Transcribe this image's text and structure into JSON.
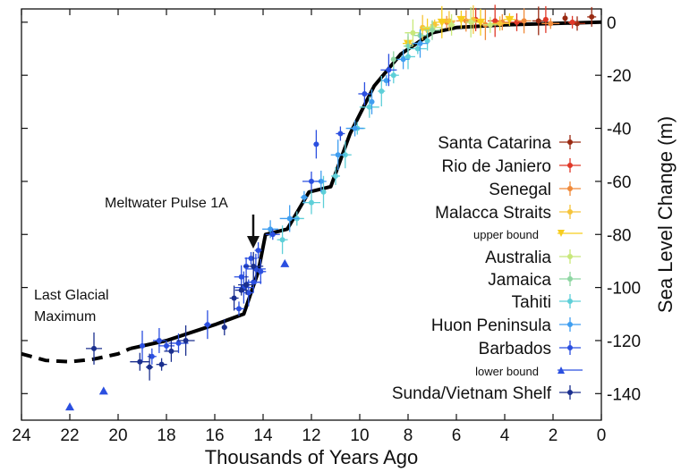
{
  "chart_data": {
    "type": "scatter",
    "xlabel": "Thousands of Years Ago",
    "ylabel": "Sea Level Change (m)",
    "xlim": [
      24,
      0
    ],
    "ylim": [
      -150,
      5
    ],
    "x_ticks": [
      24,
      22,
      20,
      18,
      16,
      14,
      12,
      10,
      8,
      6,
      4,
      2,
      0
    ],
    "y_ticks": [
      0,
      -20,
      -40,
      -60,
      -80,
      -100,
      -120,
      -140
    ],
    "y_axis_side": "right",
    "grid": false,
    "legend_position": "right, inside plot",
    "annotations": [
      {
        "id": "mwp",
        "text": "Meltwater Pulse 1A",
        "x": 14.5,
        "y": -78
      },
      {
        "id": "lgm",
        "text": "Last Glacial\nMaximum",
        "x": 22,
        "y": -128
      }
    ],
    "curve_dashed": {
      "name": "",
      "color": "#000000",
      "x": [
        24,
        23,
        22,
        21,
        20,
        19.5
      ],
      "y": [
        -125,
        -127.5,
        -128,
        -127,
        -125,
        -123
      ]
    },
    "curve_solid": {
      "name": "",
      "color": "#000000",
      "x": [
        19.5,
        18,
        16,
        14.8,
        14.2,
        13.9,
        13.0,
        12.1,
        11.2,
        10.4,
        9.4,
        8.3,
        7.0,
        6.0,
        4.0,
        2.0,
        0
      ],
      "y": [
        -123,
        -120,
        -114,
        -110,
        -94,
        -80,
        -78,
        -64,
        -62,
        -42,
        -24,
        -12,
        -4,
        -2,
        -1,
        -0.5,
        0
      ]
    },
    "series": [
      {
        "name": "Santa Catarina",
        "color": "#9a2a12",
        "marker": "circle",
        "points": [
          [
            1.5,
            1.5
          ],
          [
            0.4,
            2
          ],
          [
            2.6,
            0.5
          ],
          [
            1.0,
            -0.5
          ]
        ]
      },
      {
        "name": "Rio de Janiero",
        "color": "#e03828",
        "marker": "circle",
        "points": [
          [
            5.2,
            1
          ],
          [
            4.4,
            0.5
          ],
          [
            3.5,
            0
          ],
          [
            2.3,
            1
          ],
          [
            1.2,
            0
          ]
        ]
      },
      {
        "name": "Senegal",
        "color": "#f08a3a",
        "marker": "circle",
        "points": [
          [
            6.4,
            0
          ],
          [
            5.6,
            0.5
          ],
          [
            4.8,
            -1
          ],
          [
            4.1,
            0
          ],
          [
            3.2,
            0.5
          ],
          [
            2.1,
            -0.5
          ]
        ]
      },
      {
        "name": "Malacca Straits",
        "color": "#f6c43a",
        "marker": "circle",
        "points": [
          [
            7.4,
            -2
          ],
          [
            6.9,
            -1
          ],
          [
            6.3,
            0.5
          ],
          [
            5.3,
            1
          ],
          [
            4.2,
            -0.5
          ]
        ]
      },
      {
        "name": "upper bound",
        "color": "#f7cd1e",
        "marker": "triangle-down",
        "points": [
          [
            8.0,
            -8
          ],
          [
            7.2,
            -3
          ],
          [
            6.6,
            0
          ],
          [
            5.8,
            1
          ],
          [
            5.0,
            0
          ],
          [
            3.8,
            1
          ]
        ]
      },
      {
        "name": "Australia",
        "color": "#c8e87a",
        "marker": "circle",
        "points": [
          [
            7.8,
            -4
          ],
          [
            7.0,
            -2
          ],
          [
            6.2,
            -1
          ],
          [
            5.4,
            0
          ],
          [
            4.6,
            -1
          ]
        ]
      },
      {
        "name": "Jamaica",
        "color": "#8ed6a2",
        "marker": "circle",
        "points": [
          [
            8.6,
            -14
          ],
          [
            8.0,
            -9
          ],
          [
            7.5,
            -5
          ],
          [
            7.0,
            -3
          ]
        ]
      },
      {
        "name": "Tahiti",
        "color": "#5ecfd8",
        "marker": "circle",
        "points": [
          [
            13.2,
            -82
          ],
          [
            12.6,
            -74
          ],
          [
            12.0,
            -68
          ],
          [
            11.5,
            -64
          ],
          [
            11.0,
            -58
          ],
          [
            10.6,
            -50
          ],
          [
            10.1,
            -40
          ],
          [
            9.6,
            -32
          ],
          [
            9.1,
            -26
          ],
          [
            8.6,
            -20
          ],
          [
            8.0,
            -13
          ],
          [
            7.6,
            -10
          ],
          [
            7.2,
            -7
          ]
        ]
      },
      {
        "name": "Huon Peninsula",
        "color": "#3f9ef0",
        "marker": "circle",
        "points": [
          [
            13.7,
            -78
          ],
          [
            12.9,
            -74
          ],
          [
            12.3,
            -66
          ],
          [
            11.6,
            -60
          ],
          [
            10.9,
            -50
          ],
          [
            10.2,
            -40
          ],
          [
            9.5,
            -30
          ],
          [
            8.9,
            -22
          ],
          [
            8.2,
            -14
          ],
          [
            7.5,
            -8
          ]
        ]
      },
      {
        "name": "Barbados",
        "color": "#2b4fe0",
        "marker": "circle",
        "points": [
          [
            19.0,
            -122
          ],
          [
            18.6,
            -126
          ],
          [
            18.3,
            -120
          ],
          [
            18.0,
            -122
          ],
          [
            17.5,
            -121
          ],
          [
            16.3,
            -114
          ],
          [
            15.0,
            -108
          ],
          [
            14.9,
            -96
          ],
          [
            14.8,
            -100
          ],
          [
            14.7,
            -92
          ],
          [
            14.6,
            -102
          ],
          [
            14.5,
            -89
          ],
          [
            14.4,
            -98
          ],
          [
            14.3,
            -93
          ],
          [
            14.2,
            -86
          ],
          [
            14.1,
            -94
          ],
          [
            13.6,
            -80
          ],
          [
            12.0,
            -60
          ],
          [
            11.8,
            -46
          ],
          [
            10.8,
            -42
          ],
          [
            9.8,
            -27
          ],
          [
            8.8,
            -18
          ]
        ]
      },
      {
        "name": "lower bound",
        "color": "#2b4fe0",
        "marker": "triangle",
        "points": [
          [
            22.0,
            -145
          ],
          [
            20.6,
            -139
          ],
          [
            13.1,
            -91
          ]
        ]
      },
      {
        "name": "Sunda/Vietnam Shelf",
        "color": "#1a2f8e",
        "marker": "circle",
        "points": [
          [
            21.0,
            -123
          ],
          [
            19.1,
            -128
          ],
          [
            18.7,
            -130
          ],
          [
            18.2,
            -129
          ],
          [
            17.8,
            -124
          ],
          [
            17.2,
            -120
          ],
          [
            15.6,
            -115
          ],
          [
            15.2,
            -104
          ],
          [
            14.9,
            -101
          ],
          [
            14.7,
            -99
          ],
          [
            14.4,
            -92
          ]
        ]
      }
    ]
  }
}
